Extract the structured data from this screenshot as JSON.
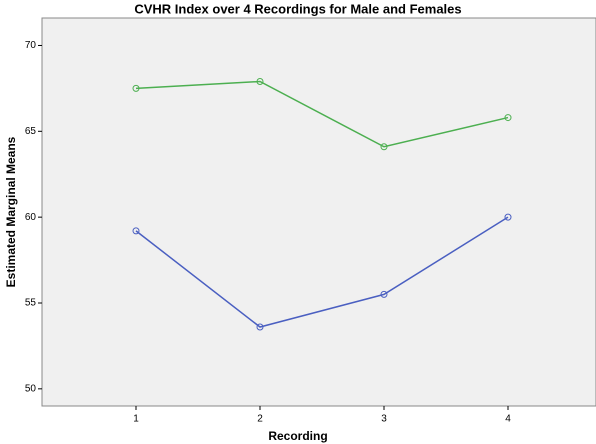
{
  "chart_data": {
    "type": "line",
    "title": "CVHR Index over 4 Recordings for Male and Females",
    "x_label": "Recording",
    "y_label": "Estimated Marginal Means",
    "categories": [
      "1",
      "2",
      "3",
      "4"
    ],
    "series": [
      {
        "color": "#4caf50",
        "values": [
          67.5,
          67.9,
          64.1,
          65.8
        ]
      },
      {
        "color": "#4a5fc1",
        "values": [
          59.2,
          53.6,
          55.5,
          60.0
        ]
      }
    ],
    "ylim": [
      49,
      71.6
    ],
    "yticks": [
      50,
      55,
      60,
      65,
      70
    ]
  }
}
